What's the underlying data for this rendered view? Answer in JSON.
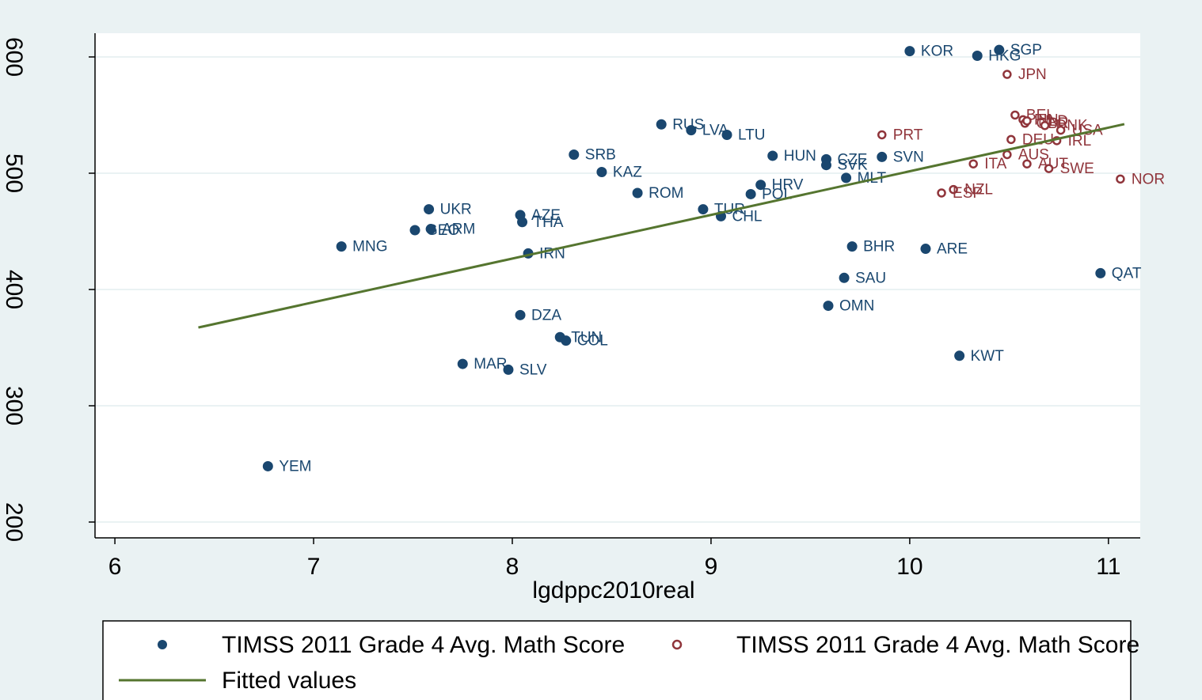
{
  "chart_data": {
    "type": "scatter",
    "x_label": "lgdppc2010real",
    "xlim": [
      5.9,
      11.16
    ],
    "ylim": [
      186.4,
      620.4
    ],
    "xticks": [
      6,
      7,
      8,
      9,
      10,
      11
    ],
    "yticks": [
      200,
      300,
      400,
      500,
      600
    ],
    "grid": true,
    "legend": "bottom",
    "series": [
      {
        "name": "TIMSS 2011 Grade 4 Avg. Math Score",
        "color": "#1a476f",
        "marker": "filled",
        "labels": [
          "KOR",
          "HKG",
          "SGP",
          "RUS",
          "LVA",
          "LTU",
          "SRB",
          "KAZ",
          "HUN",
          "CZE",
          "SVK",
          "SVN",
          "MLT",
          "HRV",
          "POL",
          "ROM",
          "TUR",
          "CHL",
          "UKR",
          "AZE",
          "THA",
          "ARM",
          "GEO",
          "MNG",
          "IRN",
          "BHR",
          "ARE",
          "SAU",
          "QAT",
          "OMN",
          "DZA",
          "TUN",
          "COL",
          "MAR",
          "SLV",
          "KWT",
          "YEM"
        ],
        "x": [
          10.0,
          10.34,
          10.45,
          8.75,
          8.9,
          9.08,
          8.31,
          8.45,
          9.31,
          9.58,
          9.58,
          9.86,
          9.68,
          9.25,
          9.2,
          8.63,
          8.96,
          9.05,
          7.58,
          8.04,
          8.05,
          7.59,
          7.51,
          7.14,
          8.08,
          9.71,
          10.08,
          9.67,
          10.96,
          9.59,
          8.04,
          8.24,
          8.27,
          7.75,
          7.98,
          10.25,
          6.77
        ],
        "values": [
          605,
          601,
          606,
          542,
          537,
          533,
          516,
          501,
          515,
          512,
          507,
          514,
          496,
          490,
          482,
          483,
          469,
          463,
          469,
          464,
          458,
          452,
          451,
          437,
          431,
          437,
          435,
          410,
          414,
          386,
          378,
          359,
          356,
          336,
          331,
          343,
          248
        ]
      },
      {
        "name": "TIMSS 2011 Grade 4 Avg. Math Score",
        "color": "#90353b",
        "marker": "hollow",
        "labels": [
          "JPN",
          "BEL",
          "FIN",
          "GBR",
          "NLD",
          "DNK",
          "USA",
          "PRT",
          "DEU",
          "IRL",
          "AUS",
          "ITA",
          "AUT",
          "SWE",
          "NOR",
          "NZL",
          "ESP"
        ],
        "x": [
          10.49,
          10.53,
          10.57,
          10.58,
          10.59,
          10.68,
          10.76,
          9.86,
          10.51,
          10.74,
          10.49,
          10.32,
          10.59,
          10.7,
          11.06,
          10.22,
          10.16
        ],
        "values": [
          585,
          550,
          546,
          543,
          545,
          541,
          537,
          533,
          529,
          528,
          516,
          508,
          508,
          504,
          495,
          486,
          483
        ]
      },
      {
        "name": "Fitted values",
        "color": "#55752f",
        "marker": "line",
        "x": [
          6.42,
          11.08
        ],
        "values": [
          367.3,
          542.2
        ]
      }
    ]
  }
}
